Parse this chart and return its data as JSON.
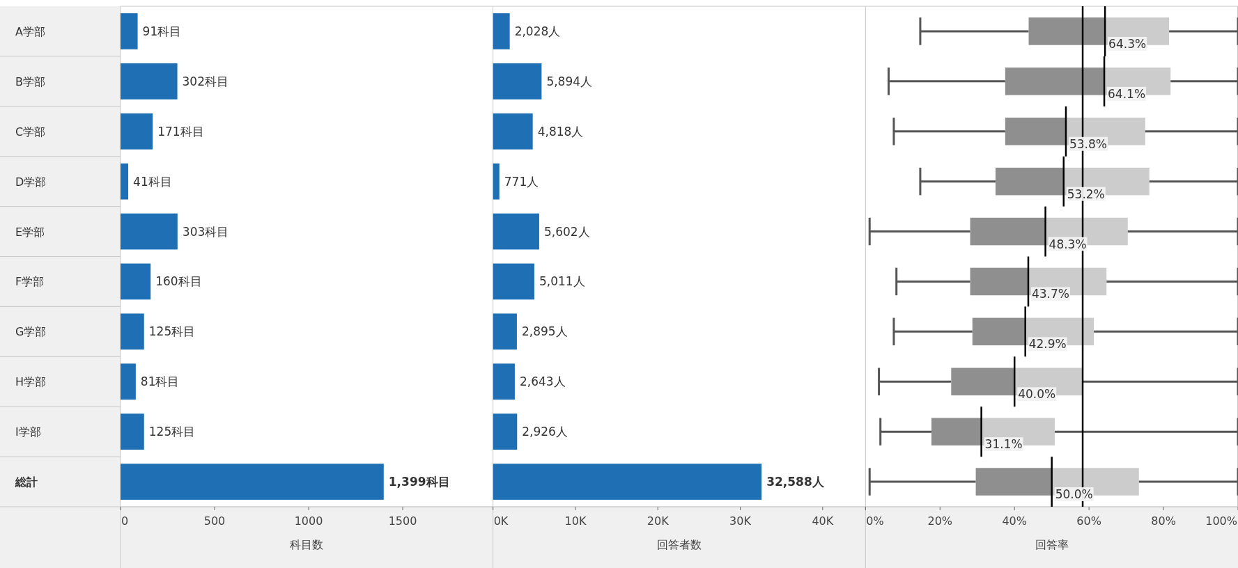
{
  "chart_data": [
    {
      "type": "bar",
      "orientation": "horizontal",
      "categories": [
        "A学部",
        "B学部",
        "C学部",
        "D学部",
        "E学部",
        "F学部",
        "G学部",
        "H学部",
        "I学部",
        "総計"
      ],
      "values": [
        91,
        302,
        171,
        41,
        303,
        160,
        125,
        81,
        125,
        1399
      ],
      "color": "#1f6fb4",
      "value_labels": [
        "91科目",
        "302科目",
        "171科目",
        "41科目",
        "303科目",
        "160科目",
        "125科目",
        "81科目",
        "125科目",
        "1,399科目"
      ],
      "xlim": [
        0,
        1980
      ],
      "xticks": [
        0,
        500,
        1000,
        1500
      ],
      "xlabel": "科目数"
    },
    {
      "type": "bar",
      "orientation": "horizontal",
      "categories": [
        null,
        null,
        null,
        null,
        null,
        null,
        null,
        null,
        null,
        null
      ],
      "values": [
        2028,
        5894,
        4818,
        771,
        5602,
        5011,
        2895,
        2643,
        2926,
        32588
      ],
      "color": "#1f6fb4",
      "value_labels": [
        "2,028人",
        "5,894人",
        "4,818人",
        "771人",
        "5,602人",
        "5,011人",
        "2,895人",
        "2,643人",
        "2,926人",
        "32,588人"
      ],
      "xlim": [
        0,
        45200
      ],
      "xticks": [
        {
          "value": 0,
          "label": "0K"
        },
        {
          "value": 10000,
          "label": "10K"
        },
        {
          "value": 20000,
          "label": "20K"
        },
        {
          "value": 30000,
          "label": "30K"
        },
        {
          "value": 40000,
          "label": "40K"
        }
      ],
      "xlabel": "回答者数",
      "tick_labels": "x"
    },
    {
      "type": "box",
      "orientation": "horizontal",
      "categories": [
        null,
        null,
        null,
        null,
        null,
        null,
        null,
        null,
        null,
        null
      ],
      "color": "#8f8f8f",
      "boxes": [
        {
          "low": 14.7,
          "q1": 43.8,
          "median": 64.3,
          "q3": 81.5,
          "high": 100
        },
        {
          "low": 6.2,
          "q1": 37.5,
          "median": 64.1,
          "q3": 81.9,
          "high": 100
        },
        {
          "low": 7.6,
          "q1": 37.5,
          "median": 53.8,
          "q3": 75.1,
          "high": 100
        },
        {
          "low": 14.7,
          "q1": 34.9,
          "median": 53.2,
          "q3": 76.2,
          "high": 100
        },
        {
          "low": 1.1,
          "q1": 28.1,
          "median": 48.3,
          "q3": 70.4,
          "high": 100
        },
        {
          "low": 8.3,
          "q1": 28.1,
          "median": 43.7,
          "q3": 64.7,
          "high": 100
        },
        {
          "low": 7.6,
          "q1": 28.7,
          "median": 42.9,
          "q3": 61.3,
          "high": 100
        },
        {
          "low": 3.6,
          "q1": 23.0,
          "median": 40.0,
          "q3": 58.1,
          "high": 100
        },
        {
          "low": 4.0,
          "q1": 17.7,
          "median": 31.1,
          "q3": 50.8,
          "high": 100
        },
        {
          "low": 1.1,
          "q1": 29.6,
          "median": 50.0,
          "q3": 73.4,
          "high": 100
        }
      ],
      "value_labels": [
        "64.3%",
        "64.1%",
        "53.8%",
        "53.2%",
        "48.3%",
        "43.7%",
        "42.9%",
        "40.0%",
        "31.1%",
        "50.0%"
      ],
      "ref_lines": [
        {
          "axis": "x",
          "value": 58.3,
          "color": "#000000"
        }
      ],
      "xlim": [
        0,
        100
      ],
      "xticks": [
        {
          "value": 0,
          "label": "0%"
        },
        {
          "value": 20,
          "label": "20%"
        },
        {
          "value": 40,
          "label": "40%"
        },
        {
          "value": 60,
          "label": "60%"
        },
        {
          "value": 80,
          "label": "80%"
        },
        {
          "value": 100,
          "label": "100%"
        }
      ],
      "xlabel": "回答率",
      "tick_labels": "x"
    }
  ]
}
